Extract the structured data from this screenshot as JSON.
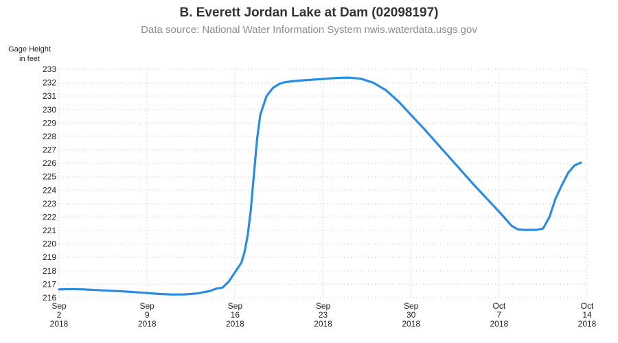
{
  "chart_data": {
    "type": "line",
    "title": "B. Everett Jordan Lake at Dam (02098197)",
    "subtitle": "Data source: National Water Information System nwis.waterdata.usgs.gov",
    "ylabel_lines": [
      "Gage Height",
      "in feet"
    ],
    "xlabel": "",
    "xlim": [
      "2018-09-02",
      "2018-10-14"
    ],
    "ylim": [
      216,
      233
    ],
    "y_ticks": [
      216,
      217,
      218,
      219,
      220,
      221,
      222,
      223,
      224,
      225,
      226,
      227,
      228,
      229,
      230,
      231,
      232,
      233
    ],
    "x_ticks": [
      {
        "date": "2018-09-02",
        "month": "Sep",
        "day": "2",
        "year": "2018"
      },
      {
        "date": "2018-09-09",
        "month": "Sep",
        "day": "9",
        "year": "2018"
      },
      {
        "date": "2018-09-16",
        "month": "Sep",
        "day": "16",
        "year": "2018"
      },
      {
        "date": "2018-09-23",
        "month": "Sep",
        "day": "23",
        "year": "2018"
      },
      {
        "date": "2018-09-30",
        "month": "Sep",
        "day": "30",
        "year": "2018"
      },
      {
        "date": "2018-10-07",
        "month": "Oct",
        "day": "7",
        "year": "2018"
      },
      {
        "date": "2018-10-14",
        "month": "Oct",
        "day": "14",
        "year": "2018"
      }
    ],
    "grid": true,
    "line_color": "#2b8ce0",
    "series": [
      {
        "points": [
          [
            "2018-09-02",
            216.62
          ],
          [
            "2018-09-03",
            216.65
          ],
          [
            "2018-09-04",
            216.62
          ],
          [
            "2018-09-05",
            216.57
          ],
          [
            "2018-09-06",
            216.52
          ],
          [
            "2018-09-07",
            216.48
          ],
          [
            "2018-09-08",
            216.42
          ],
          [
            "2018-09-09",
            216.35
          ],
          [
            "2018-09-10",
            216.28
          ],
          [
            "2018-09-11",
            216.24
          ],
          [
            "2018-09-12",
            216.25
          ],
          [
            "2018-09-13",
            216.32
          ],
          [
            "2018-09-14",
            216.5
          ],
          [
            "2018-09-14T12:00",
            216.68
          ],
          [
            "2018-09-15",
            216.75
          ],
          [
            "2018-09-15T12:00",
            217.2
          ],
          [
            "2018-09-16",
            217.9
          ],
          [
            "2018-09-16T12:00",
            218.6
          ],
          [
            "2018-09-16T18:00",
            219.4
          ],
          [
            "2018-09-17",
            220.6
          ],
          [
            "2018-09-17T06:00",
            222.5
          ],
          [
            "2018-09-17T12:00",
            225.2
          ],
          [
            "2018-09-17T18:00",
            227.8
          ],
          [
            "2018-09-18",
            229.6
          ],
          [
            "2018-09-18T12:00",
            231.0
          ],
          [
            "2018-09-19",
            231.6
          ],
          [
            "2018-09-19T12:00",
            231.9
          ],
          [
            "2018-09-20",
            232.05
          ],
          [
            "2018-09-21",
            232.15
          ],
          [
            "2018-09-22",
            232.22
          ],
          [
            "2018-09-23",
            232.28
          ],
          [
            "2018-09-24",
            232.35
          ],
          [
            "2018-09-25",
            232.38
          ],
          [
            "2018-09-26",
            232.3
          ],
          [
            "2018-09-27",
            232.0
          ],
          [
            "2018-09-28",
            231.45
          ],
          [
            "2018-09-29",
            230.6
          ],
          [
            "2018-09-30",
            229.6
          ],
          [
            "2018-10-01",
            228.6
          ],
          [
            "2018-10-02",
            227.55
          ],
          [
            "2018-10-03",
            226.5
          ],
          [
            "2018-10-04",
            225.45
          ],
          [
            "2018-10-05",
            224.4
          ],
          [
            "2018-10-06",
            223.4
          ],
          [
            "2018-10-07",
            222.4
          ],
          [
            "2018-10-08",
            221.35
          ],
          [
            "2018-10-08T12:00",
            221.08
          ],
          [
            "2018-10-09",
            221.05
          ],
          [
            "2018-10-10",
            221.05
          ],
          [
            "2018-10-10T12:00",
            221.15
          ],
          [
            "2018-10-11",
            222.0
          ],
          [
            "2018-10-11T12:00",
            223.4
          ],
          [
            "2018-10-12",
            224.4
          ],
          [
            "2018-10-12T12:00",
            225.3
          ],
          [
            "2018-10-13",
            225.85
          ],
          [
            "2018-10-13T12:00",
            226.05
          ]
        ]
      }
    ]
  }
}
